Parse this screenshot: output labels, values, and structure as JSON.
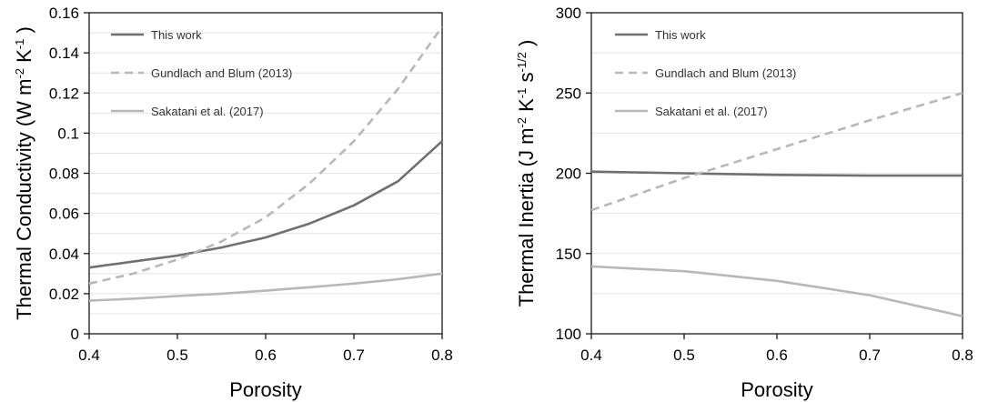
{
  "chart_data": [
    {
      "type": "line",
      "ylabel": {
        "base": "Thermal Conductivity (W m",
        "e1": "-2",
        "mid": " K",
        "e2": "-1",
        "end": " )"
      },
      "xlabel": "Porosity",
      "xlim": [
        0.4,
        0.8
      ],
      "ylim": [
        0,
        0.16
      ],
      "x_ticks": [
        "0.4",
        "0.5",
        "0.6",
        "0.7",
        "0.8"
      ],
      "y_ticks": [
        "0",
        "0.02",
        "0.04",
        "0.06",
        "0.08",
        "0.1",
        "0.12",
        "0.14",
        "0.16"
      ],
      "grid": true,
      "legend_position": "top-left",
      "series": [
        {
          "name": "This work",
          "style": "solid",
          "color": "#707070",
          "x": [
            0.4,
            0.45,
            0.5,
            0.55,
            0.6,
            0.65,
            0.7,
            0.75,
            0.8
          ],
          "y": [
            0.033,
            0.036,
            0.039,
            0.043,
            0.048,
            0.055,
            0.064,
            0.076,
            0.096
          ]
        },
        {
          "name": "Gundlach and Blum (2013)",
          "style": "dashed",
          "color": "#b8b8b8",
          "x": [
            0.4,
            0.45,
            0.5,
            0.55,
            0.6,
            0.65,
            0.7,
            0.75,
            0.8
          ],
          "y": [
            0.025,
            0.03,
            0.037,
            0.046,
            0.058,
            0.075,
            0.096,
            0.122,
            0.153
          ]
        },
        {
          "name": "Sakatani et al. (2017)",
          "style": "solid",
          "color": "#b8b8b8",
          "x": [
            0.4,
            0.45,
            0.5,
            0.55,
            0.6,
            0.65,
            0.7,
            0.75,
            0.8
          ],
          "y": [
            0.0165,
            0.0175,
            0.0188,
            0.02,
            0.0215,
            0.0232,
            0.025,
            0.0272,
            0.03
          ]
        }
      ]
    },
    {
      "type": "line",
      "ylabel": {
        "base": "Thermal Inertia (J m",
        "e1": "-2",
        "mid": " K",
        "e2": "-1",
        "mid2": " s",
        "e3": "-1/2",
        "end": " )"
      },
      "xlabel": "Porosity",
      "xlim": [
        0.4,
        0.8
      ],
      "ylim": [
        100,
        300
      ],
      "x_ticks": [
        "0.4",
        "0.5",
        "0.6",
        "0.7",
        "0.8"
      ],
      "y_ticks": [
        "100",
        "150",
        "200",
        "250",
        "300"
      ],
      "grid": true,
      "legend_position": "top-left",
      "series": [
        {
          "name": "This work",
          "style": "solid",
          "color": "#707070",
          "x": [
            0.4,
            0.5,
            0.6,
            0.7,
            0.8
          ],
          "y": [
            201,
            200,
            199,
            198.5,
            198.5
          ]
        },
        {
          "name": "Gundlach and Blum (2013)",
          "style": "dashed",
          "color": "#b8b8b8",
          "x": [
            0.4,
            0.5,
            0.6,
            0.7,
            0.8
          ],
          "y": [
            177,
            197,
            215,
            233,
            250
          ]
        },
        {
          "name": "Sakatani et al. (2017)",
          "style": "solid",
          "color": "#b8b8b8",
          "x": [
            0.4,
            0.5,
            0.6,
            0.7,
            0.8
          ],
          "y": [
            142,
            139,
            133,
            124,
            111
          ]
        }
      ]
    }
  ]
}
